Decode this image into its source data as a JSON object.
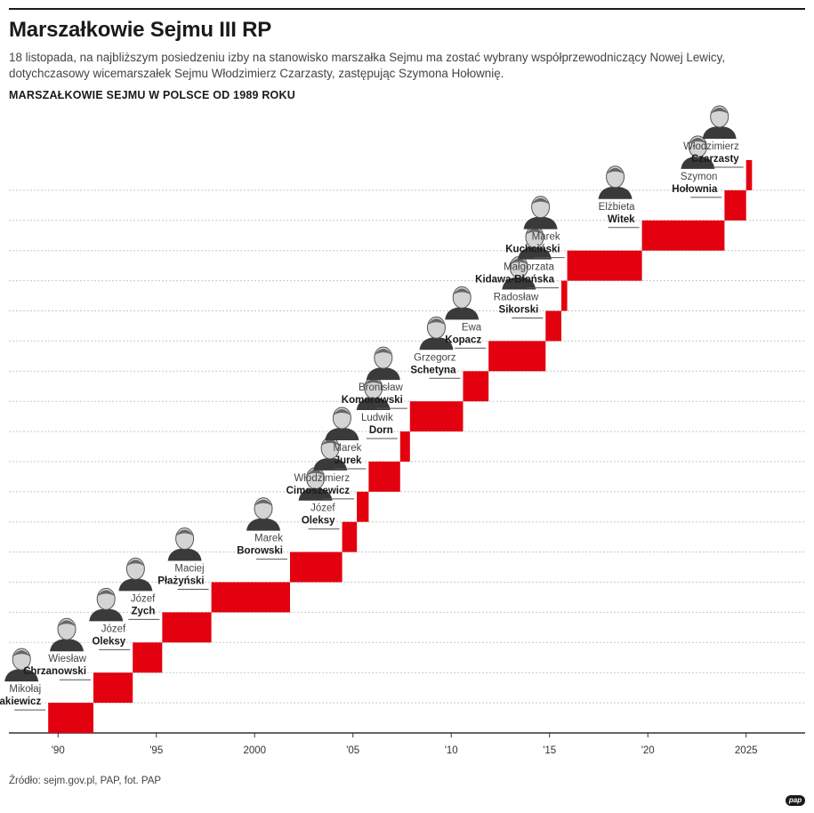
{
  "header": {
    "title": "Marszałkowie Sejmu III RP",
    "lead": "18 listopada, na najbliższym posiedzeniu izby na stanowisko marszałka Sejmu ma zostać wybrany współprzewodniczący Nowej Lewicy, dotychczasowy wicemarszałek Sejmu Włodzimierz Czarzasty, zastępując Szymona Hołownię.",
    "subtitle": "MARSZAŁKOWIE SEJMU W POLSCE OD 1989 ROKU"
  },
  "footer": {
    "source": "Źródło: sejm.gov.pl, PAP, fot. PAP",
    "logo": "pap"
  },
  "colors": {
    "bar": "#e3000f",
    "text": "#1a1a1a",
    "grid": "#c8c8c8",
    "axis": "#333333"
  },
  "chart_data": {
    "type": "bar",
    "subtype": "gantt-staircase",
    "title": "MARSZAŁKOWIE SEJMU W POLSCE OD 1989 ROKU",
    "xlim": [
      1987.5,
      2028
    ],
    "x_ticks": [
      {
        "value": 1990,
        "label": "'90"
      },
      {
        "value": 1995,
        "label": "'95"
      },
      {
        "value": 2000,
        "label": "2000"
      },
      {
        "value": 2005,
        "label": "'05"
      },
      {
        "value": 2010,
        "label": "'10"
      },
      {
        "value": 2015,
        "label": "'15"
      },
      {
        "value": 2020,
        "label": "'20"
      },
      {
        "value": 2025,
        "label": "2025"
      }
    ],
    "series": [
      {
        "first": "Mikołaj",
        "last": "Kozakiewicz",
        "start": 1989.5,
        "end": 1991.8
      },
      {
        "first": "Wiesław",
        "last": "Chrzanowski",
        "start": 1991.8,
        "end": 1993.8
      },
      {
        "first": "Józef",
        "last": "Oleksy",
        "start": 1993.8,
        "end": 1995.3
      },
      {
        "first": "Józef",
        "last": "Zych",
        "start": 1995.3,
        "end": 1997.8
      },
      {
        "first": "Maciej",
        "last": "Płażyński",
        "start": 1997.8,
        "end": 2001.8
      },
      {
        "first": "Marek",
        "last": "Borowski",
        "start": 2001.8,
        "end": 2004.45
      },
      {
        "first": "Józef",
        "last": "Oleksy",
        "start": 2004.45,
        "end": 2005.2
      },
      {
        "first": "Włodzimierz",
        "last": "Cimoszewicz",
        "start": 2005.2,
        "end": 2005.8
      },
      {
        "first": "Marek",
        "last": "Jurek",
        "start": 2005.8,
        "end": 2007.4
      },
      {
        "first": "Ludwik",
        "last": "Dorn",
        "start": 2007.4,
        "end": 2007.9
      },
      {
        "first": "Bronisław",
        "last": "Komorowski",
        "start": 2007.9,
        "end": 2010.6
      },
      {
        "first": "Grzegorz",
        "last": "Schetyna",
        "start": 2010.6,
        "end": 2011.9
      },
      {
        "first": "Ewa",
        "last": "Kopacz",
        "start": 2011.9,
        "end": 2014.8
      },
      {
        "first": "Radosław",
        "last": "Sikorski",
        "start": 2014.8,
        "end": 2015.6
      },
      {
        "first": "Małgorzata",
        "last": "Kidawa-Błońska",
        "start": 2015.6,
        "end": 2015.9
      },
      {
        "first": "Marek",
        "last": "Kuchciński",
        "start": 2015.9,
        "end": 2019.7
      },
      {
        "first": "Elżbieta",
        "last": "Witek",
        "start": 2019.7,
        "end": 2023.9
      },
      {
        "first": "Szymon",
        "last": "Hołownia",
        "start": 2023.9,
        "end": 2025.0
      },
      {
        "first": "Włodzimierz",
        "last": "Czarzasty",
        "start": 2025.0,
        "end": 2025.3
      }
    ]
  }
}
